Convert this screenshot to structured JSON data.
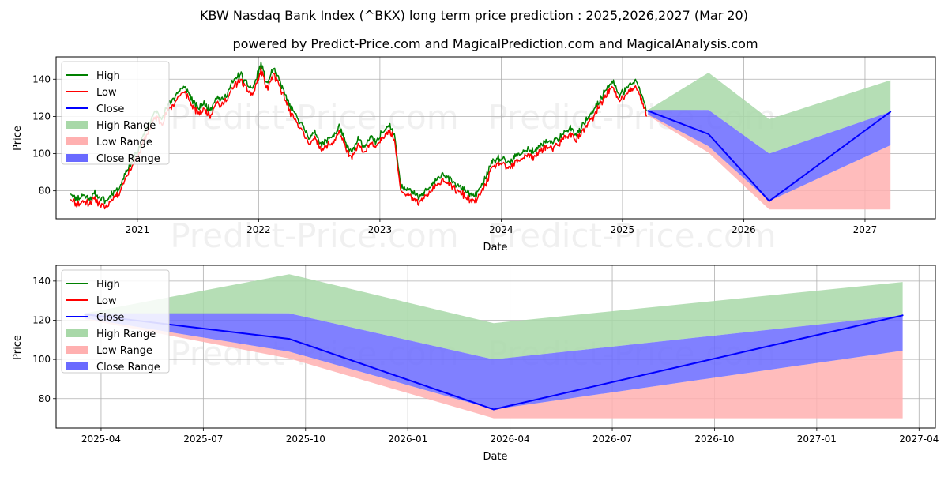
{
  "title": "KBW Nasdaq Bank Index (^BKX) long term price prediction : 2025,2026,2027 (Mar 20)",
  "subtitle": "powered by Predict-Price.com and MagicalPrediction.com and MagicalAnalysis.com",
  "watermark": "Predict-Price.com",
  "colors": {
    "high": "#008000",
    "low": "#ff0000",
    "close": "#0000ff",
    "high_range": "#a8d8a8",
    "low_range": "#ffb0b0",
    "close_range": "#6a6aff"
  },
  "chart_data": [
    {
      "type": "line",
      "title": "Full history and forecast",
      "xlabel": "Date",
      "ylabel": "Price",
      "xlim": [
        2020.33,
        2027.58
      ],
      "ylim": [
        65,
        152
      ],
      "xticks": [
        {
          "v": 2021.0,
          "label": "2021"
        },
        {
          "v": 2022.0,
          "label": "2022"
        },
        {
          "v": 2023.0,
          "label": "2023"
        },
        {
          "v": 2024.0,
          "label": "2024"
        },
        {
          "v": 2025.0,
          "label": "2025"
        },
        {
          "v": 2026.0,
          "label": "2026"
        },
        {
          "v": 2027.0,
          "label": "2027"
        }
      ],
      "yticks": [
        80,
        100,
        120,
        140
      ],
      "grid": true,
      "legend": [
        "High",
        "Low",
        "Close",
        "High Range",
        "Low Range",
        "Close Range"
      ],
      "history_close": [
        [
          2020.45,
          78
        ],
        [
          2020.5,
          74
        ],
        [
          2020.55,
          76
        ],
        [
          2020.6,
          75
        ],
        [
          2020.65,
          77
        ],
        [
          2020.7,
          74
        ],
        [
          2020.75,
          73
        ],
        [
          2020.8,
          78
        ],
        [
          2020.85,
          80
        ],
        [
          2020.9,
          88
        ],
        [
          2020.95,
          94
        ],
        [
          2021.0,
          99
        ],
        [
          2021.05,
          108
        ],
        [
          2021.1,
          115
        ],
        [
          2021.15,
          121
        ],
        [
          2021.2,
          118
        ],
        [
          2021.25,
          124
        ],
        [
          2021.3,
          128
        ],
        [
          2021.35,
          133
        ],
        [
          2021.4,
          134
        ],
        [
          2021.45,
          127
        ],
        [
          2021.5,
          123
        ],
        [
          2021.55,
          125
        ],
        [
          2021.6,
          122
        ],
        [
          2021.65,
          129
        ],
        [
          2021.7,
          127
        ],
        [
          2021.75,
          132
        ],
        [
          2021.8,
          138
        ],
        [
          2021.85,
          141
        ],
        [
          2021.9,
          136
        ],
        [
          2021.95,
          133
        ],
        [
          2022.02,
          146
        ],
        [
          2022.07,
          136
        ],
        [
          2022.12,
          144
        ],
        [
          2022.17,
          138
        ],
        [
          2022.22,
          130
        ],
        [
          2022.27,
          122
        ],
        [
          2022.32,
          118
        ],
        [
          2022.37,
          112
        ],
        [
          2022.42,
          107
        ],
        [
          2022.47,
          110
        ],
        [
          2022.52,
          103
        ],
        [
          2022.57,
          106
        ],
        [
          2022.62,
          108
        ],
        [
          2022.67,
          113
        ],
        [
          2022.72,
          103
        ],
        [
          2022.77,
          99
        ],
        [
          2022.82,
          106
        ],
        [
          2022.87,
          102
        ],
        [
          2022.92,
          107
        ],
        [
          2022.97,
          104
        ],
        [
          2023.02,
          110
        ],
        [
          2023.07,
          114
        ],
        [
          2023.12,
          109
        ],
        [
          2023.17,
          82
        ],
        [
          2023.22,
          80
        ],
        [
          2023.27,
          77
        ],
        [
          2023.32,
          75
        ],
        [
          2023.37,
          78
        ],
        [
          2023.42,
          81
        ],
        [
          2023.47,
          84
        ],
        [
          2023.52,
          88
        ],
        [
          2023.57,
          85
        ],
        [
          2023.62,
          82
        ],
        [
          2023.67,
          80
        ],
        [
          2023.72,
          78
        ],
        [
          2023.77,
          75
        ],
        [
          2023.82,
          79
        ],
        [
          2023.87,
          85
        ],
        [
          2023.92,
          93
        ],
        [
          2023.97,
          96
        ],
        [
          2024.02,
          95
        ],
        [
          2024.07,
          93
        ],
        [
          2024.12,
          97
        ],
        [
          2024.17,
          99
        ],
        [
          2024.22,
          101
        ],
        [
          2024.27,
          99
        ],
        [
          2024.32,
          103
        ],
        [
          2024.37,
          105
        ],
        [
          2024.42,
          104
        ],
        [
          2024.47,
          106
        ],
        [
          2024.52,
          110
        ],
        [
          2024.57,
          112
        ],
        [
          2024.62,
          109
        ],
        [
          2024.67,
          113
        ],
        [
          2024.72,
          118
        ],
        [
          2024.77,
          122
        ],
        [
          2024.82,
          128
        ],
        [
          2024.87,
          134
        ],
        [
          2024.92,
          137
        ],
        [
          2024.97,
          130
        ],
        [
          2025.02,
          132
        ],
        [
          2025.07,
          136
        ],
        [
          2025.12,
          137
        ],
        [
          2025.17,
          128
        ],
        [
          2025.2,
          121
        ]
      ],
      "forecast_dates": [
        "2025-03-20",
        "2025-09-15",
        "2026-03-20",
        "2027-03-20"
      ],
      "forecast_x": [
        2025.21,
        2025.71,
        2026.21,
        2027.21
      ],
      "close": [
        123,
        110.5,
        74.5,
        122.5
      ],
      "high_range": {
        "upper": [
          123.5,
          143.5,
          118.5,
          139.5
        ],
        "lower": [
          123,
          123.5,
          100,
          122.5
        ]
      },
      "close_range": {
        "upper": [
          123.5,
          123.5,
          100,
          122.5
        ],
        "lower": [
          121,
          104,
          74.5,
          104.5
        ]
      },
      "low_range": {
        "upper": [
          121,
          104,
          74.5,
          104.5
        ],
        "lower": [
          120.5,
          100.5,
          70,
          70
        ]
      }
    },
    {
      "type": "area",
      "title": "Forecast detail",
      "xlabel": "Date",
      "ylabel": "Price",
      "xlim": [
        2025.14,
        2027.29
      ],
      "ylim": [
        65,
        148
      ],
      "xticks": [
        {
          "v": 2025.25,
          "label": "2025-04"
        },
        {
          "v": 2025.5,
          "label": "2025-07"
        },
        {
          "v": 2025.75,
          "label": "2025-10"
        },
        {
          "v": 2026.0,
          "label": "2026-01"
        },
        {
          "v": 2026.25,
          "label": "2026-04"
        },
        {
          "v": 2026.5,
          "label": "2026-07"
        },
        {
          "v": 2026.75,
          "label": "2026-10"
        },
        {
          "v": 2027.0,
          "label": "2027-01"
        },
        {
          "v": 2027.25,
          "label": "2027-04"
        }
      ],
      "yticks": [
        80,
        100,
        120,
        140
      ],
      "grid": true,
      "legend": [
        "High",
        "Low",
        "Close",
        "High Range",
        "Low Range",
        "Close Range"
      ],
      "forecast_x": [
        2025.21,
        2025.71,
        2026.21,
        2027.21
      ],
      "close": [
        123,
        110.5,
        74.5,
        122.5
      ],
      "high_range": {
        "upper": [
          123.5,
          143.5,
          118.5,
          139.5
        ],
        "lower": [
          123,
          123.5,
          100,
          122.5
        ]
      },
      "close_range": {
        "upper": [
          123.5,
          123.5,
          100,
          122.5
        ],
        "lower": [
          121,
          104,
          74.5,
          104.5
        ]
      },
      "low_range": {
        "upper": [
          121,
          104,
          74.5,
          104.5
        ],
        "lower": [
          120.5,
          100.5,
          70,
          70
        ]
      }
    }
  ]
}
